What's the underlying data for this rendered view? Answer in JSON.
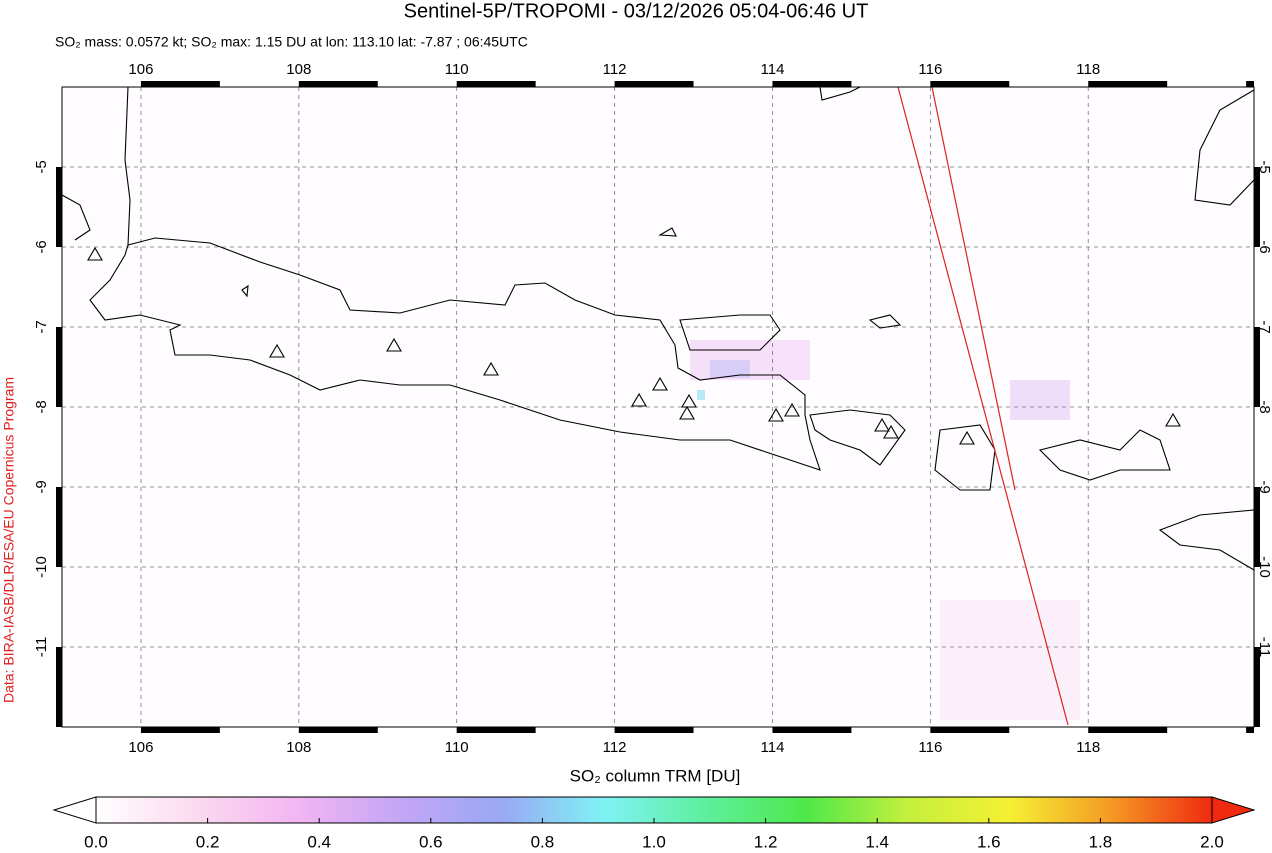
{
  "chart_data": {
    "type": "map",
    "title": "Sentinel-5P/TROPOMI - 03/12/2026 05:04-06:46 UT",
    "subtitle": "SO₂ mass: 0.0572 kt; SO₂ max: 1.15 DU at lon: 113.10 lat: -7.87 ; 06:45UTC",
    "credit": "Data: BIRA-IASB/DLR/ESA/EU Copernicus Program",
    "xlim": [
      105,
      120.1
    ],
    "ylim": [
      -12,
      -4
    ],
    "xticks": [
      106,
      108,
      110,
      112,
      114,
      116,
      118
    ],
    "yticks": [
      -5,
      -6,
      -7,
      -8,
      -9,
      -10,
      -11
    ],
    "grid": true,
    "colorbar": {
      "label": "SO₂ column TRM [DU]",
      "lim": [
        0,
        2
      ],
      "ticks": [
        {
          "value": 0,
          "label": "0.0"
        },
        {
          "value": 0.2,
          "label": "0.2"
        },
        {
          "value": 0.4,
          "label": "0.4"
        },
        {
          "value": 0.6,
          "label": "0.6"
        },
        {
          "value": 0.8,
          "label": "0.8"
        },
        {
          "value": 1,
          "label": "1.0"
        },
        {
          "value": 1.2,
          "label": "1.2"
        },
        {
          "value": 1.4,
          "label": "1.4"
        },
        {
          "value": 1.6,
          "label": "1.6"
        },
        {
          "value": 1.8,
          "label": "1.8"
        },
        {
          "value": 2,
          "label": "2.0"
        }
      ],
      "colormap": [
        "#ffffff",
        "#fbd9ef",
        "#f2b5f2",
        "#c3a6f5",
        "#9aa8f4",
        "#7ff2f5",
        "#5fef9f",
        "#4fe84a",
        "#c4f03c",
        "#f5f033",
        "#f59a25",
        "#f02a10"
      ]
    }
  }
}
